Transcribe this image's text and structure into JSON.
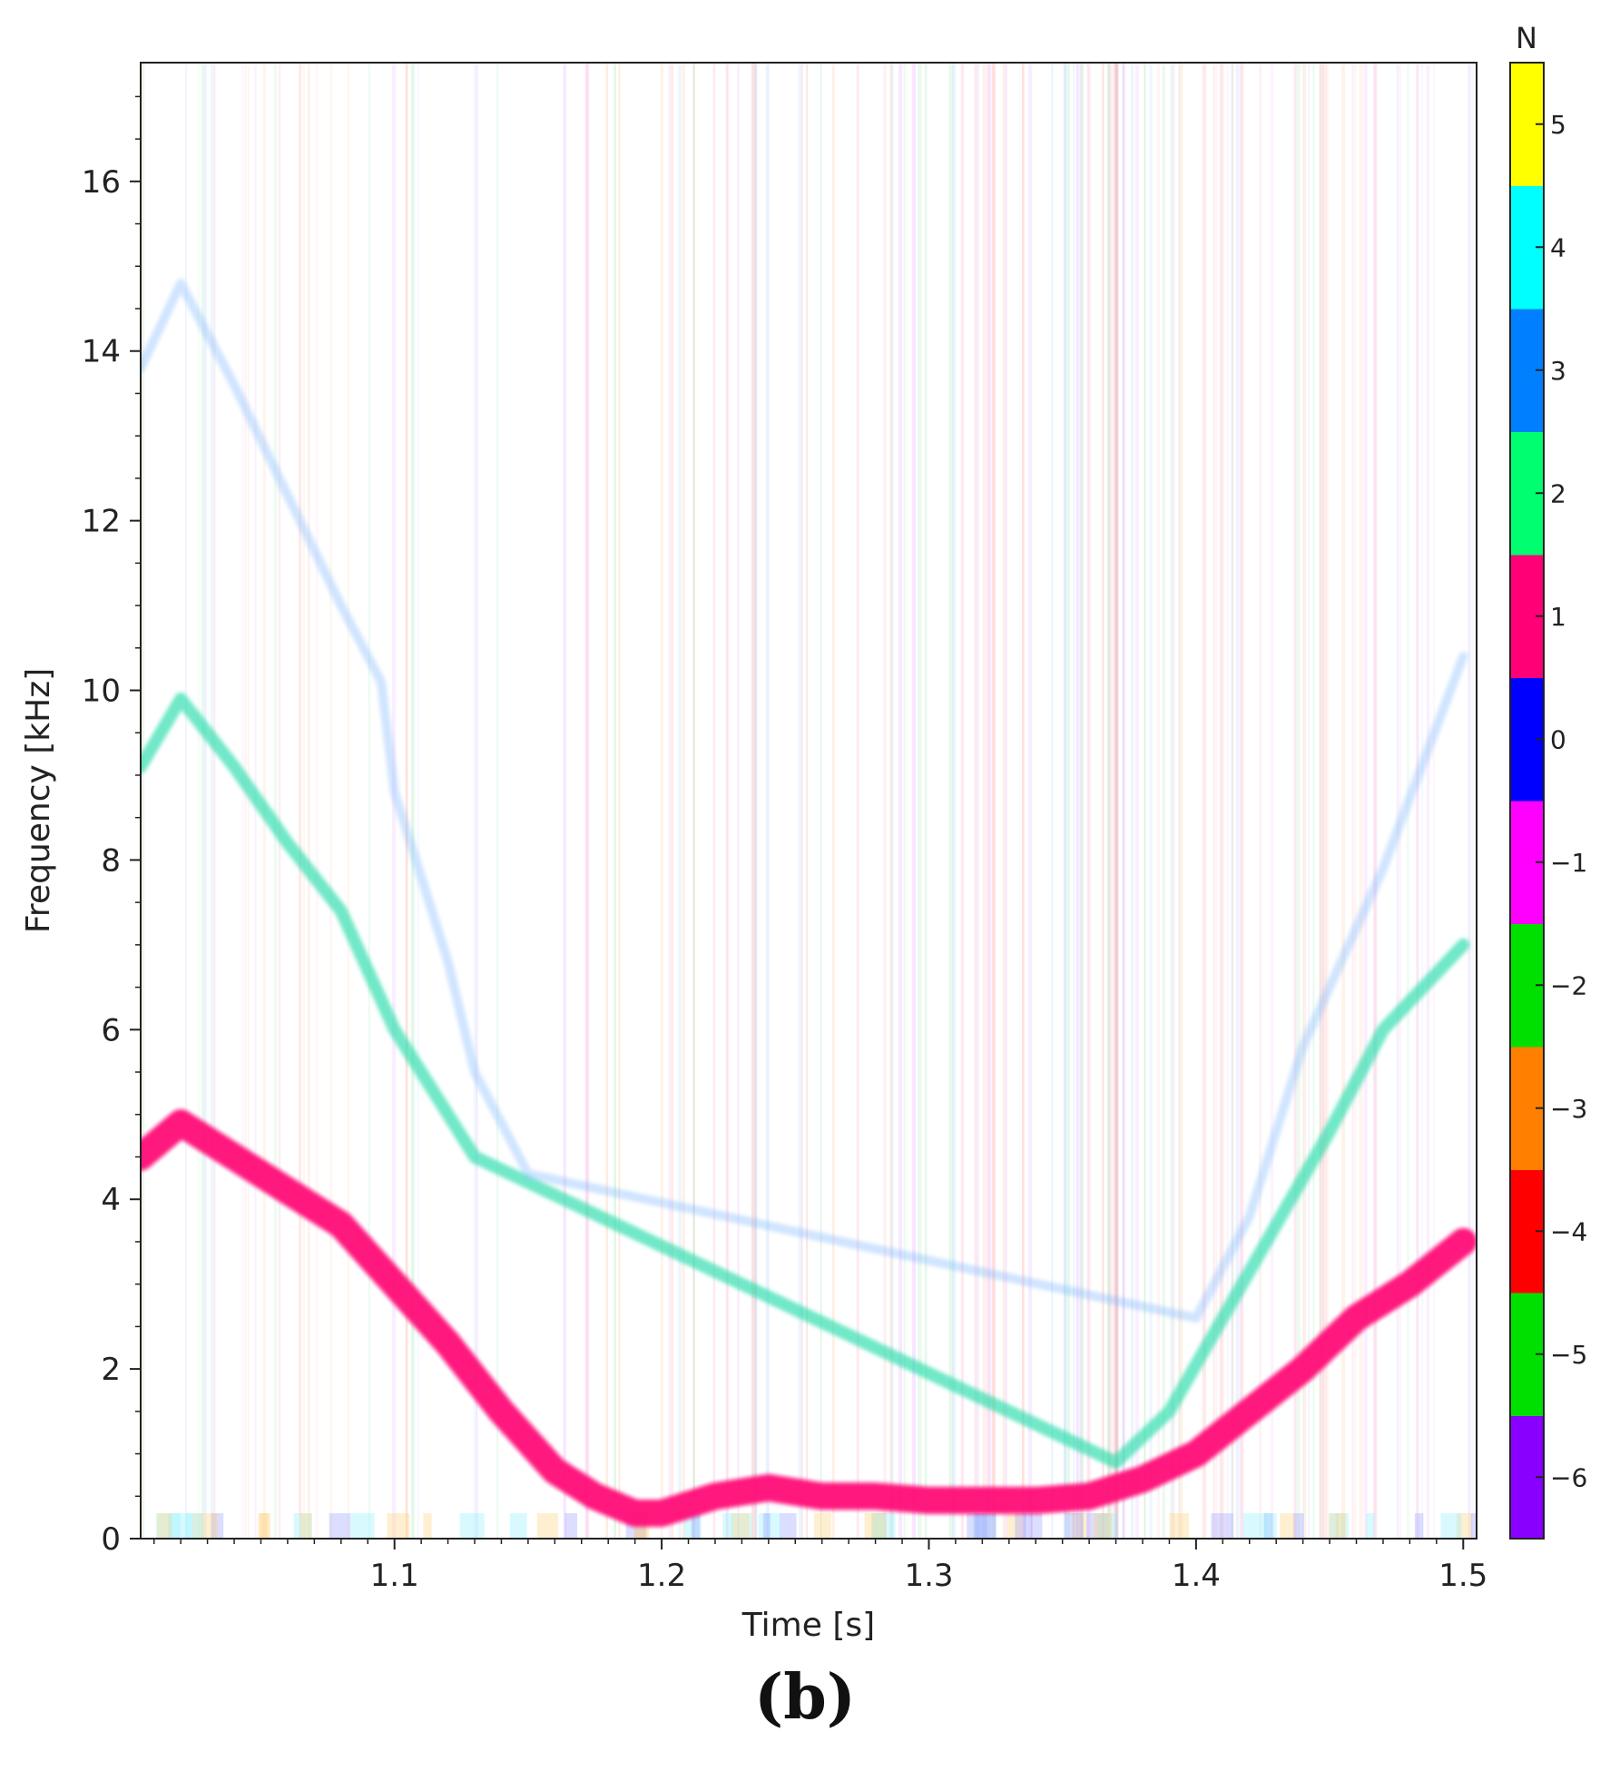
{
  "panel_label": "(b)",
  "chart_data": {
    "type": "heatmap",
    "subtype": "spectrogram",
    "xlabel": "Time [s]",
    "ylabel": "Frequency [kHz]",
    "xlim": [
      1.005,
      1.505
    ],
    "ylim": [
      0,
      17.4
    ],
    "x_ticks": [
      1.1,
      1.2,
      1.3,
      1.4,
      1.5
    ],
    "x_tick_labels": [
      "1.1",
      "1.2",
      "1.3",
      "1.4",
      "1.5"
    ],
    "y_ticks": [
      0,
      2,
      4,
      6,
      8,
      10,
      12,
      14,
      16
    ],
    "y_tick_labels": [
      "0",
      "2",
      "4",
      "6",
      "8",
      "10",
      "12",
      "14",
      "16"
    ],
    "background": "#ffffff",
    "colorbar": {
      "title": "N",
      "levels": [
        -6,
        -5,
        -4,
        -3,
        -2,
        -1,
        0,
        1,
        2,
        3,
        4,
        5
      ],
      "tick_labels": [
        "−6",
        "−5",
        "−4",
        "−3",
        "−2",
        "−1",
        "0",
        "1",
        "2",
        "3",
        "4",
        "5"
      ],
      "colors": [
        "#8a00ff",
        "#00e000",
        "#ff0000",
        "#ff8000",
        "#00e000",
        "#ff00ff",
        "#0000ff",
        "#ff0077",
        "#00ff70",
        "#0080ff",
        "#00ffff",
        "#ffff00"
      ]
    },
    "series": [
      {
        "mode": 1,
        "color": "#ff0a78",
        "x": [
          1.005,
          1.02,
          1.04,
          1.06,
          1.08,
          1.1,
          1.12,
          1.14,
          1.16,
          1.175,
          1.19,
          1.2,
          1.22,
          1.24,
          1.26,
          1.28,
          1.3,
          1.32,
          1.34,
          1.36,
          1.38,
          1.4,
          1.42,
          1.44,
          1.46,
          1.48,
          1.5
        ],
        "y": [
          4.5,
          4.9,
          4.5,
          4.1,
          3.7,
          3.0,
          2.3,
          1.5,
          0.8,
          0.5,
          0.3,
          0.3,
          0.5,
          0.6,
          0.5,
          0.5,
          0.45,
          0.45,
          0.45,
          0.5,
          0.7,
          1.0,
          1.5,
          2.0,
          2.6,
          3.0,
          3.5
        ]
      },
      {
        "mode": 2,
        "color": "#28dcaa",
        "x": [
          1.005,
          1.02,
          1.04,
          1.06,
          1.08,
          1.1,
          1.12,
          1.13,
          1.37,
          1.39,
          1.41,
          1.43,
          1.45,
          1.47,
          1.5
        ],
        "y": [
          9.1,
          9.9,
          9.1,
          8.2,
          7.4,
          6.0,
          5.0,
          4.5,
          0.9,
          1.5,
          2.6,
          3.7,
          4.8,
          6.0,
          7.0
        ]
      },
      {
        "mode": 3,
        "color": "#78b4ff",
        "x": [
          1.005,
          1.02,
          1.04,
          1.06,
          1.08,
          1.095,
          1.1,
          1.12,
          1.13,
          1.15,
          1.4,
          1.42,
          1.44,
          1.47,
          1.5
        ],
        "y": [
          13.8,
          14.8,
          13.6,
          12.3,
          11.0,
          10.1,
          8.8,
          6.8,
          5.5,
          4.3,
          2.6,
          3.8,
          5.8,
          7.9,
          10.4
        ]
      }
    ]
  }
}
